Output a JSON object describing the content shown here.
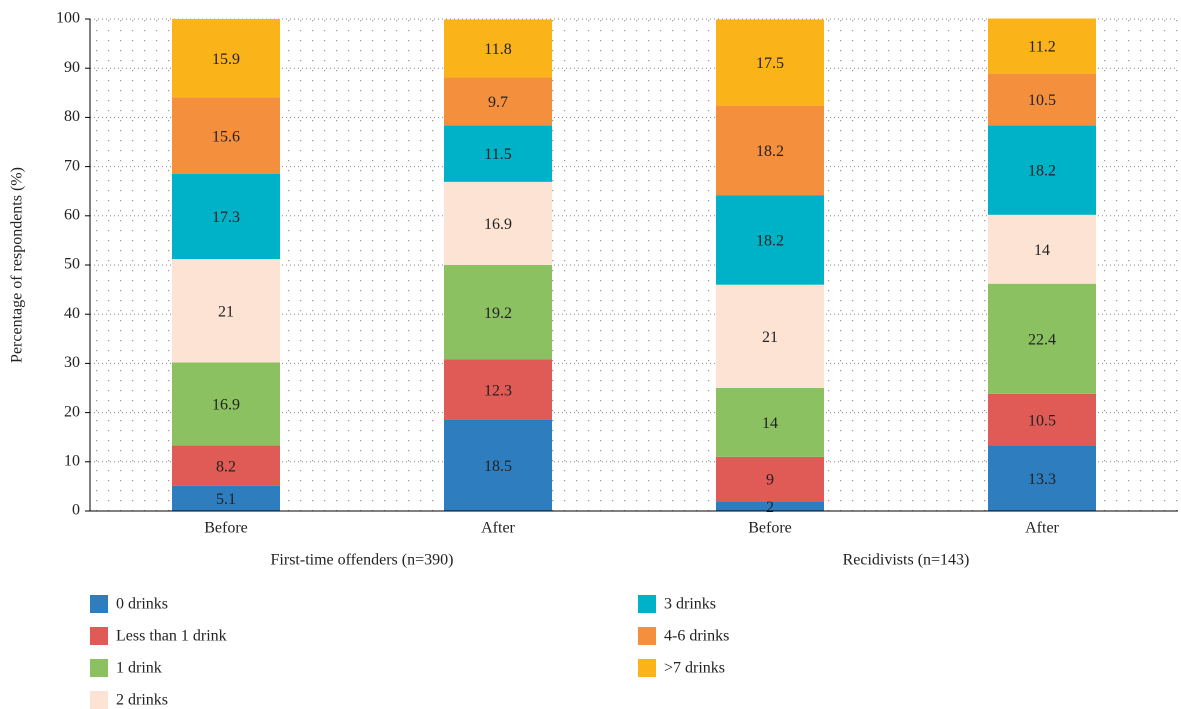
{
  "chart_data": {
    "type": "stacked_bar",
    "y_label": "Percentage of respondents (%)",
    "categories": [
      "Before",
      "After",
      "Before",
      "After"
    ],
    "groups": [
      "First-time offenders (n=390)",
      "Recidivists (n=143)"
    ],
    "series": [
      {
        "name": "0 drinks",
        "color": "#2e7ebf",
        "values": [
          5.1,
          18.5,
          2,
          13.3
        ]
      },
      {
        "name": "Less than 1 drink",
        "color": "#e05a56",
        "values": [
          8.2,
          12.3,
          9,
          10.5
        ]
      },
      {
        "name": "1 drink",
        "color": "#8bc160",
        "values": [
          16.9,
          19.2,
          14,
          22.4
        ]
      },
      {
        "name": "2 drinks",
        "color": "#fde3d3",
        "values": [
          21,
          16.9,
          21,
          14
        ]
      },
      {
        "name": "3 drinks",
        "color": "#00b2c8",
        "values": [
          17.3,
          11.5,
          18.2,
          18.2
        ]
      },
      {
        "name": "4-6 drinks",
        "color": "#f48f3e",
        "values": [
          15.6,
          9.7,
          18.2,
          10.5
        ]
      },
      {
        "name": ">7 drinks",
        "color": "#fbb31a",
        "values": [
          15.9,
          11.8,
          17.5,
          11.2
        ]
      }
    ],
    "ylim": [
      0,
      100
    ],
    "yticks": [
      0,
      10,
      20,
      30,
      40,
      50,
      60,
      70,
      80,
      90,
      100
    ],
    "grid": true,
    "legend": "bottom"
  }
}
